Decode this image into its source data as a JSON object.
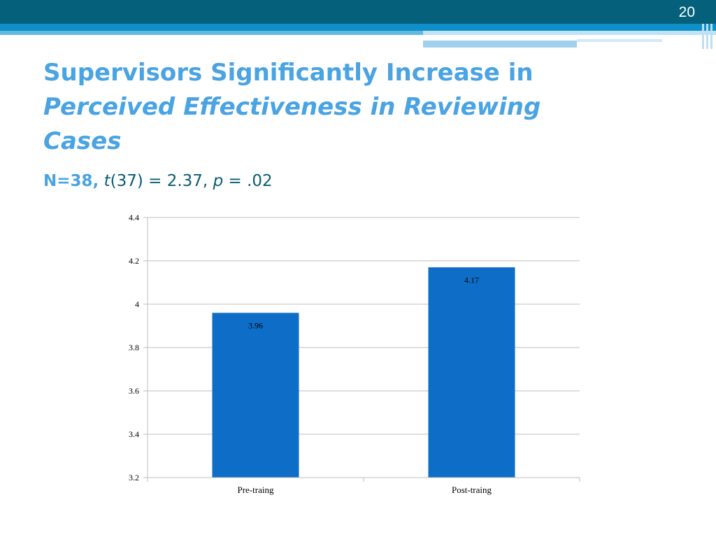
{
  "slide": {
    "number": "20",
    "title_line1": "Supervisors Significantly Increase in",
    "title_line2": "Perceived Effectiveness in Reviewing",
    "title_line3": "Cases",
    "stats_n": "N=38,",
    "stats_t": "t",
    "stats_df": "(37) = 2.37, ",
    "stats_p": "p",
    "stats_pval": " = .02"
  },
  "colors": {
    "bar": "#0e6dc6",
    "grid": "#bfbfbf",
    "title": "#4aa3e2",
    "stats": "#0b5c73"
  },
  "chart_data": {
    "type": "bar",
    "categories": [
      "Pre-traing",
      "Post-traing"
    ],
    "values": [
      3.96,
      4.17
    ],
    "data_labels": [
      "3.96",
      "4.17"
    ],
    "yticks": [
      "3.2",
      "3.4",
      "3.6",
      "3.8",
      "4",
      "4.2",
      "4.4"
    ],
    "ylim": [
      3.2,
      4.4
    ],
    "grid": true,
    "legend": "none"
  }
}
